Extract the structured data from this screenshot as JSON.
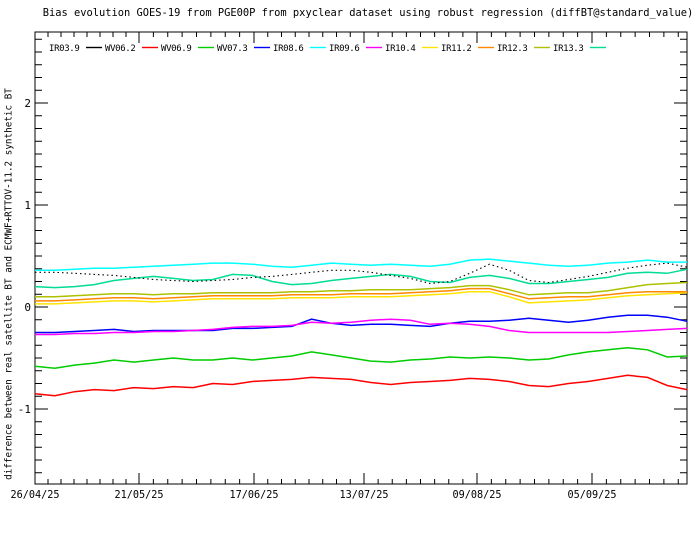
{
  "chart_data": {
    "type": "line",
    "title": "Bias evolution GOES-19 from PGE00P from pxyclear dataset using robust regression (diffBT@standard_value)",
    "ylabel": "difference between real satellite BT and ECMWF+RTTOV-11.2 synthetic BT",
    "xlabel": "",
    "x_tick_labels": [
      "26/04/25",
      "21/05/25",
      "17/06/25",
      "13/07/25",
      "09/08/25",
      "05/09/25"
    ],
    "y_tick_labels": [
      "-1",
      "0",
      "1",
      "2"
    ],
    "y_tick_values": [
      -1,
      0,
      1,
      2
    ],
    "ylim": [
      -1.73,
      2.7
    ],
    "grid": false,
    "legend_position": "top-inside",
    "axis_color": "#000000",
    "background_color": "#ffffff",
    "series": [
      {
        "name": "IR03.9",
        "color": "#000000",
        "style": "dotted",
        "values": [
          0.34,
          0.34,
          0.33,
          0.32,
          0.31,
          0.29,
          0.27,
          0.26,
          0.25,
          0.26,
          0.27,
          0.29,
          0.3,
          0.32,
          0.34,
          0.36,
          0.36,
          0.34,
          0.31,
          0.28,
          0.23,
          0.25,
          0.33,
          0.42,
          0.36,
          0.26,
          0.24,
          0.27,
          0.3,
          0.34,
          0.38,
          0.41,
          0.43,
          0.39
        ]
      },
      {
        "name": "WV06.2",
        "color": "#ff0000",
        "style": "solid",
        "values": [
          -0.85,
          -0.87,
          -0.83,
          -0.81,
          -0.82,
          -0.79,
          -0.8,
          -0.78,
          -0.79,
          -0.75,
          -0.76,
          -0.73,
          -0.72,
          -0.71,
          -0.69,
          -0.7,
          -0.71,
          -0.74,
          -0.76,
          -0.74,
          -0.73,
          -0.72,
          -0.7,
          -0.71,
          -0.73,
          -0.77,
          -0.78,
          -0.75,
          -0.73,
          -0.7,
          -0.67,
          -0.69,
          -0.77,
          -0.81
        ]
      },
      {
        "name": "WV06.9",
        "color": "#00cc00",
        "style": "solid",
        "values": [
          -0.58,
          -0.6,
          -0.57,
          -0.55,
          -0.52,
          -0.54,
          -0.52,
          -0.5,
          -0.52,
          -0.52,
          -0.5,
          -0.52,
          -0.5,
          -0.48,
          -0.44,
          -0.47,
          -0.5,
          -0.53,
          -0.54,
          -0.52,
          -0.51,
          -0.49,
          -0.5,
          -0.49,
          -0.5,
          -0.52,
          -0.51,
          -0.47,
          -0.44,
          -0.42,
          -0.4,
          -0.42,
          -0.49,
          -0.48
        ]
      },
      {
        "name": "WV07.3",
        "color": "#0000ff",
        "style": "solid",
        "values": [
          -0.25,
          -0.25,
          -0.24,
          -0.23,
          -0.22,
          -0.24,
          -0.23,
          -0.23,
          -0.23,
          -0.23,
          -0.21,
          -0.21,
          -0.2,
          -0.19,
          -0.12,
          -0.16,
          -0.18,
          -0.17,
          -0.17,
          -0.18,
          -0.19,
          -0.16,
          -0.14,
          -0.14,
          -0.13,
          -0.11,
          -0.13,
          -0.15,
          -0.13,
          -0.1,
          -0.08,
          -0.08,
          -0.1,
          -0.14
        ]
      },
      {
        "name": "IR08.6",
        "color": "#00ffff",
        "style": "solid",
        "values": [
          0.36,
          0.36,
          0.37,
          0.38,
          0.38,
          0.39,
          0.4,
          0.41,
          0.42,
          0.43,
          0.43,
          0.42,
          0.4,
          0.39,
          0.41,
          0.43,
          0.42,
          0.41,
          0.42,
          0.41,
          0.4,
          0.42,
          0.46,
          0.47,
          0.45,
          0.43,
          0.41,
          0.4,
          0.41,
          0.43,
          0.44,
          0.46,
          0.44,
          0.44
        ]
      },
      {
        "name": "IR09.6",
        "color": "#ff00ff",
        "style": "solid",
        "values": [
          -0.27,
          -0.27,
          -0.26,
          -0.26,
          -0.25,
          -0.25,
          -0.24,
          -0.24,
          -0.23,
          -0.22,
          -0.2,
          -0.19,
          -0.19,
          -0.18,
          -0.15,
          -0.16,
          -0.15,
          -0.13,
          -0.12,
          -0.13,
          -0.17,
          -0.16,
          -0.17,
          -0.19,
          -0.23,
          -0.25,
          -0.25,
          -0.25,
          -0.25,
          -0.25,
          -0.24,
          -0.23,
          -0.22,
          -0.21
        ]
      },
      {
        "name": "IR10.4",
        "color": "#ffe400",
        "style": "solid",
        "values": [
          0.03,
          0.03,
          0.04,
          0.05,
          0.06,
          0.06,
          0.05,
          0.06,
          0.07,
          0.08,
          0.08,
          0.08,
          0.08,
          0.09,
          0.09,
          0.09,
          0.1,
          0.1,
          0.1,
          0.11,
          0.12,
          0.13,
          0.15,
          0.15,
          0.1,
          0.04,
          0.05,
          0.06,
          0.07,
          0.09,
          0.11,
          0.12,
          0.13,
          0.14
        ]
      },
      {
        "name": "IR11.2",
        "color": "#ff8800",
        "style": "solid",
        "values": [
          0.06,
          0.06,
          0.07,
          0.08,
          0.09,
          0.09,
          0.08,
          0.09,
          0.1,
          0.11,
          0.11,
          0.11,
          0.11,
          0.12,
          0.12,
          0.12,
          0.13,
          0.13,
          0.13,
          0.14,
          0.15,
          0.16,
          0.18,
          0.18,
          0.13,
          0.08,
          0.09,
          0.1,
          0.1,
          0.12,
          0.14,
          0.15,
          0.15,
          0.15
        ]
      },
      {
        "name": "IR12.3",
        "color": "#adc100",
        "style": "solid",
        "values": [
          0.1,
          0.1,
          0.11,
          0.12,
          0.13,
          0.13,
          0.12,
          0.13,
          0.13,
          0.14,
          0.14,
          0.14,
          0.14,
          0.15,
          0.15,
          0.16,
          0.16,
          0.17,
          0.17,
          0.17,
          0.18,
          0.19,
          0.21,
          0.21,
          0.17,
          0.12,
          0.13,
          0.14,
          0.14,
          0.16,
          0.19,
          0.22,
          0.23,
          0.24
        ]
      },
      {
        "name": "IR13.3",
        "color": "#00dc96",
        "style": "solid",
        "values": [
          0.2,
          0.19,
          0.2,
          0.22,
          0.26,
          0.28,
          0.3,
          0.28,
          0.26,
          0.27,
          0.32,
          0.31,
          0.25,
          0.22,
          0.23,
          0.26,
          0.28,
          0.3,
          0.32,
          0.3,
          0.25,
          0.24,
          0.29,
          0.31,
          0.28,
          0.23,
          0.23,
          0.25,
          0.27,
          0.29,
          0.33,
          0.34,
          0.33,
          0.37
        ]
      }
    ]
  }
}
